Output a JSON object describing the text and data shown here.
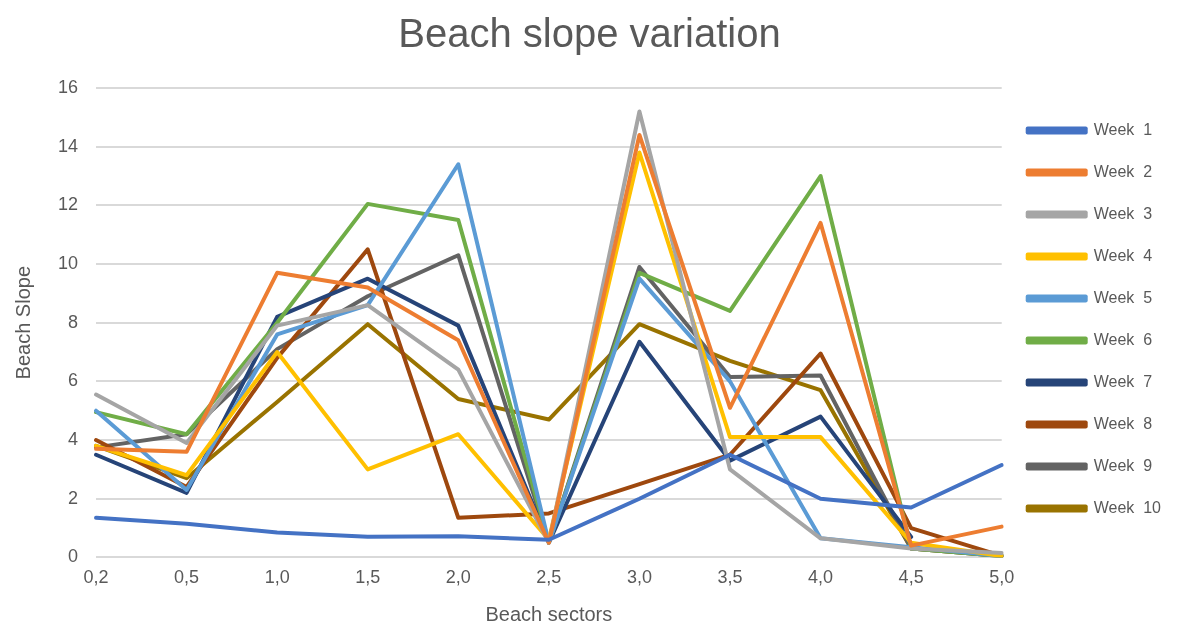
{
  "chart_data": {
    "type": "line",
    "title": "Beach slope variation",
    "xlabel": "Beach sectors",
    "ylabel": "Beach Slope",
    "categories": [
      "0,2",
      "0,5",
      "1,0",
      "1,5",
      "2,0",
      "2,5",
      "3,0",
      "3,5",
      "4,0",
      "4,5",
      "5,0"
    ],
    "ylim": [
      0,
      16
    ],
    "yticks": [
      0,
      2,
      4,
      6,
      8,
      10,
      12,
      14,
      16
    ],
    "grid": "y",
    "legend": "right",
    "marker": "none",
    "series": [
      {
        "name": "Week  1",
        "color": "#4472c4",
        "values": [
          1.35,
          1.15,
          0.85,
          0.7,
          0.72,
          0.6,
          2.0,
          3.5,
          2.0,
          1.7,
          3.15
        ]
      },
      {
        "name": "Week  2",
        "color": "#ed7d31",
        "values": [
          3.7,
          3.6,
          9.7,
          9.2,
          7.4,
          0.5,
          14.4,
          5.1,
          11.4,
          0.4,
          1.05
        ]
      },
      {
        "name": "Week  3",
        "color": "#a5a5a5",
        "values": [
          5.55,
          3.9,
          7.9,
          8.6,
          6.4,
          0.5,
          15.2,
          3.0,
          0.65,
          0.3,
          0.15
        ]
      },
      {
        "name": "Week  4",
        "color": "#ffc000",
        "values": [
          3.8,
          2.8,
          7.0,
          3.0,
          4.2,
          0.6,
          13.8,
          4.1,
          4.1,
          0.5,
          0.05
        ]
      },
      {
        "name": "Week  5",
        "color": "#5b9bd5",
        "values": [
          5.0,
          2.3,
          7.6,
          8.6,
          13.4,
          0.5,
          9.5,
          6.0,
          0.65,
          0.35,
          0.05
        ]
      },
      {
        "name": "Week  6",
        "color": "#70ad47",
        "values": [
          4.95,
          4.2,
          8.0,
          12.05,
          11.5,
          0.5,
          9.7,
          8.4,
          13.0,
          0.3,
          0.05
        ]
      },
      {
        "name": "Week  7",
        "color": "#264478",
        "values": [
          3.5,
          2.2,
          8.2,
          9.5,
          7.9,
          0.5,
          7.35,
          3.3,
          4.8,
          0.7,
          null
        ]
      },
      {
        "name": "Week  8",
        "color": "#9e480e",
        "values": [
          4.0,
          2.4,
          6.8,
          10.5,
          1.35,
          1.5,
          2.5,
          3.5,
          6.95,
          1.0,
          0.05
        ]
      },
      {
        "name": "Week  9",
        "color": "#636363",
        "values": [
          3.75,
          4.2,
          7.1,
          8.9,
          10.3,
          0.5,
          9.9,
          6.15,
          6.2,
          0.3,
          0.05
        ]
      },
      {
        "name": "Week  10",
        "color": "#997300",
        "values": [
          3.8,
          2.7,
          5.3,
          7.95,
          5.4,
          4.7,
          7.95,
          6.7,
          5.7,
          0.3,
          0.05
        ]
      }
    ]
  }
}
